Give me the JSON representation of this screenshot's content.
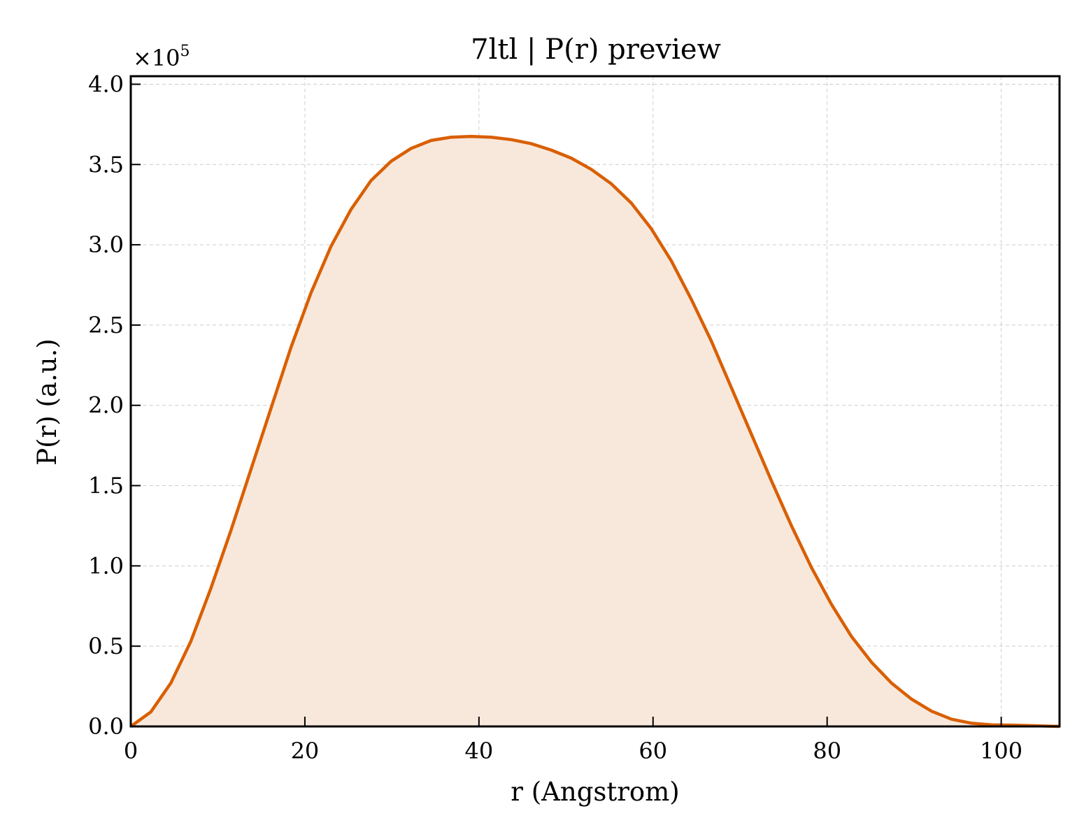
{
  "chart_data": {
    "type": "area",
    "title": "7ltl | P(r) preview",
    "xlabel": "r (Angstrom)",
    "ylabel": "P(r) (a.u.)",
    "y_offset_label": "×10",
    "y_offset_exponent": "5",
    "xlim": [
      0,
      106.7
    ],
    "ylim": [
      0,
      4.05
    ],
    "xticks": [
      0,
      20,
      40,
      60,
      80,
      100
    ],
    "xtick_labels": [
      "0",
      "20",
      "40",
      "60",
      "80",
      "100"
    ],
    "yticks": [
      0,
      0.5,
      1.0,
      1.5,
      2.0,
      2.5,
      3.0,
      3.5,
      4.0
    ],
    "ytick_labels": [
      "0.0",
      "0.5",
      "1.0",
      "1.5",
      "2.0",
      "2.5",
      "3.0",
      "3.5",
      "4.0"
    ],
    "grid": true,
    "line_color": "#d95f02",
    "fill_color": "#f8e8dc",
    "series": [
      {
        "x": [
          0,
          2.3,
          4.6,
          6.9,
          9.2,
          11.5,
          13.8,
          16.1,
          18.4,
          20.7,
          23.0,
          25.3,
          27.6,
          29.9,
          32.2,
          34.5,
          36.8,
          39.1,
          41.4,
          43.7,
          46.0,
          48.3,
          50.6,
          52.9,
          55.2,
          57.5,
          59.8,
          62.1,
          64.4,
          66.7,
          69.0,
          71.3,
          73.6,
          75.9,
          78.2,
          80.5,
          82.8,
          85.1,
          87.4,
          89.7,
          92.0,
          94.3,
          96.6,
          98.9,
          101.2,
          103.5,
          106.7
        ],
        "values": [
          0.0,
          0.09,
          0.27,
          0.53,
          0.86,
          1.22,
          1.6,
          1.98,
          2.36,
          2.7,
          2.99,
          3.22,
          3.4,
          3.52,
          3.6,
          3.65,
          3.67,
          3.675,
          3.67,
          3.655,
          3.63,
          3.59,
          3.54,
          3.47,
          3.38,
          3.26,
          3.1,
          2.9,
          2.66,
          2.4,
          2.11,
          1.82,
          1.53,
          1.25,
          0.99,
          0.76,
          0.56,
          0.4,
          0.27,
          0.17,
          0.095,
          0.045,
          0.02,
          0.01,
          0.008,
          0.005,
          0.0
        ]
      }
    ]
  }
}
